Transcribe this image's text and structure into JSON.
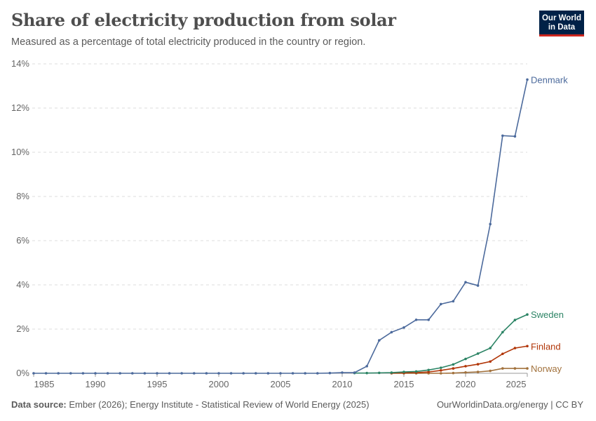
{
  "header": {
    "title": "Share of electricity production from solar",
    "subtitle": "Measured as a percentage of total electricity produced in the country or region."
  },
  "logo": {
    "line1": "Our World",
    "line2": "in Data",
    "bg": "#002147",
    "accent": "#ce261e"
  },
  "footer": {
    "source_label": "Data source:",
    "source_text": "Ember (2026); Energy Institute - Statistical Review of World Energy (2025)",
    "credit": "OurWorldinData.org/energy | CC BY"
  },
  "chart_data": {
    "type": "line",
    "title": "Share of electricity production from solar",
    "xlim": [
      1985,
      2025
    ],
    "ylim": [
      0,
      14
    ],
    "x_ticks": [
      1985,
      1990,
      1995,
      2000,
      2005,
      2010,
      2015,
      2020,
      2025
    ],
    "y_ticks": [
      0,
      2,
      4,
      6,
      8,
      10,
      12,
      14
    ],
    "y_tick_suffix": "%",
    "grid": "horizontal dashed",
    "legend": "inline labels at line ends (right)",
    "series": [
      {
        "name": "Denmark",
        "color": "#4c6a9c",
        "x": [
          1985,
          1986,
          1987,
          1988,
          1989,
          1990,
          1991,
          1992,
          1993,
          1994,
          1995,
          1996,
          1997,
          1998,
          1999,
          2000,
          2001,
          2002,
          2003,
          2004,
          2005,
          2006,
          2007,
          2008,
          2009,
          2010,
          2011,
          2012,
          2013,
          2014,
          2015,
          2016,
          2017,
          2018,
          2019,
          2020,
          2021,
          2022,
          2023,
          2024,
          2025
        ],
        "values": [
          0,
          0,
          0,
          0,
          0,
          0,
          0,
          0,
          0,
          0,
          0,
          0,
          0,
          0,
          0,
          0,
          0,
          0,
          0,
          0,
          0,
          0,
          0,
          0,
          0.01,
          0.03,
          0.03,
          0.32,
          1.49,
          1.86,
          2.07,
          2.42,
          2.42,
          3.13,
          3.26,
          4.12,
          3.97,
          6.75,
          10.75,
          10.72,
          13.29
        ]
      },
      {
        "name": "Sweden",
        "color": "#2c8465",
        "x": [
          2011,
          2012,
          2013,
          2014,
          2015,
          2016,
          2017,
          2018,
          2019,
          2020,
          2021,
          2022,
          2023,
          2024,
          2025
        ],
        "values": [
          0.01,
          0.01,
          0.02,
          0.03,
          0.06,
          0.08,
          0.15,
          0.25,
          0.4,
          0.65,
          0.89,
          1.14,
          1.86,
          2.41,
          2.66
        ]
      },
      {
        "name": "Finland",
        "color": "#b13507",
        "x": [
          2014,
          2015,
          2016,
          2017,
          2018,
          2019,
          2020,
          2021,
          2022,
          2023,
          2024,
          2025
        ],
        "values": [
          0.01,
          0.02,
          0.03,
          0.06,
          0.13,
          0.22,
          0.32,
          0.41,
          0.53,
          0.88,
          1.14,
          1.23
        ]
      },
      {
        "name": "Norway",
        "color": "#a2723d",
        "x": [
          2014,
          2015,
          2016,
          2017,
          2018,
          2019,
          2020,
          2021,
          2022,
          2023,
          2024,
          2025
        ],
        "values": [
          0,
          0,
          0,
          0,
          0,
          0.01,
          0.04,
          0.06,
          0.11,
          0.22,
          0.22,
          0.22
        ]
      }
    ]
  }
}
